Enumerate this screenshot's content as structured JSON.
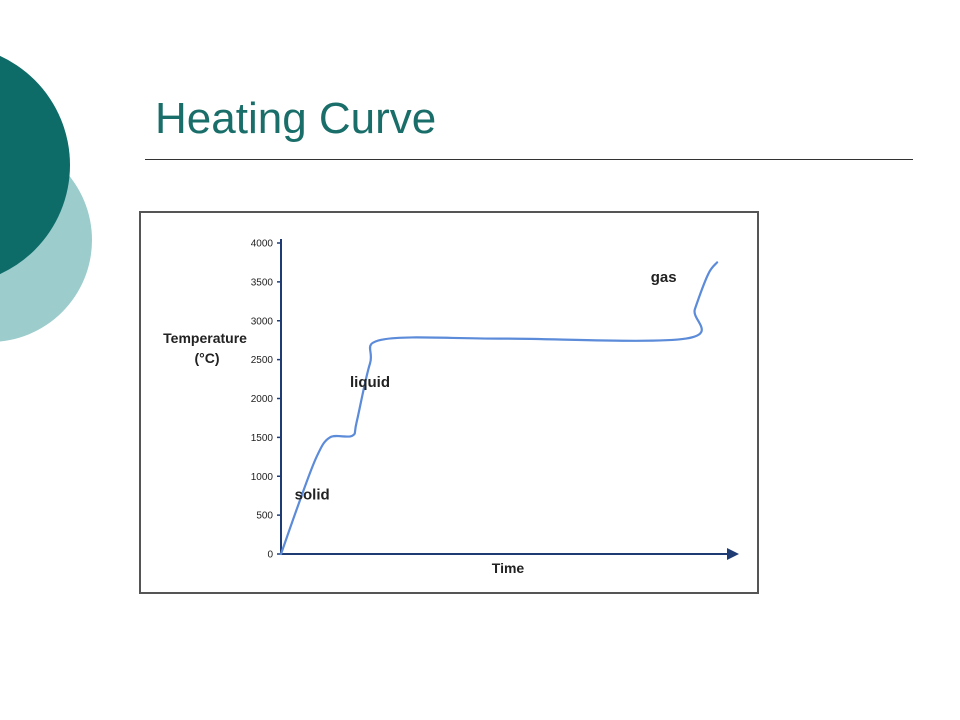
{
  "slide": {
    "title": "Heating Curve",
    "accent_colors": {
      "dark_teal": "#0d6b68",
      "light_teal": "#9ccccc",
      "title_teal": "#1a6e6a"
    }
  },
  "chart_data": {
    "type": "line",
    "title": "",
    "xlabel": "Time",
    "ylabel_lines": [
      "Temperature",
      "(°C)"
    ],
    "y_ticks": [
      0,
      500,
      1000,
      1500,
      2000,
      2500,
      3000,
      3500,
      4000
    ],
    "ylim": [
      0,
      4000
    ],
    "x_ticks_shown": false,
    "grid": false,
    "line_color": "#5b8bd9",
    "annotations": [
      {
        "text": "solid",
        "x": 0.07,
        "y": 700
      },
      {
        "text": "liquid",
        "x": 0.2,
        "y": 2150
      },
      {
        "text": "gas",
        "x": 0.86,
        "y": 3500
      }
    ],
    "series": [
      {
        "values": [
          {
            "x": 0.0,
            "y": 0
          },
          {
            "x": 0.04,
            "y": 650
          },
          {
            "x": 0.08,
            "y": 1250
          },
          {
            "x": 0.11,
            "y": 1500
          },
          {
            "x": 0.16,
            "y": 1520
          },
          {
            "x": 0.17,
            "y": 1700
          },
          {
            "x": 0.2,
            "y": 2450
          },
          {
            "x": 0.23,
            "y": 2760
          },
          {
            "x": 0.5,
            "y": 2770
          },
          {
            "x": 0.91,
            "y": 2770
          },
          {
            "x": 0.93,
            "y": 3150
          },
          {
            "x": 0.96,
            "y": 3600
          },
          {
            "x": 0.98,
            "y": 3750
          }
        ]
      }
    ]
  }
}
